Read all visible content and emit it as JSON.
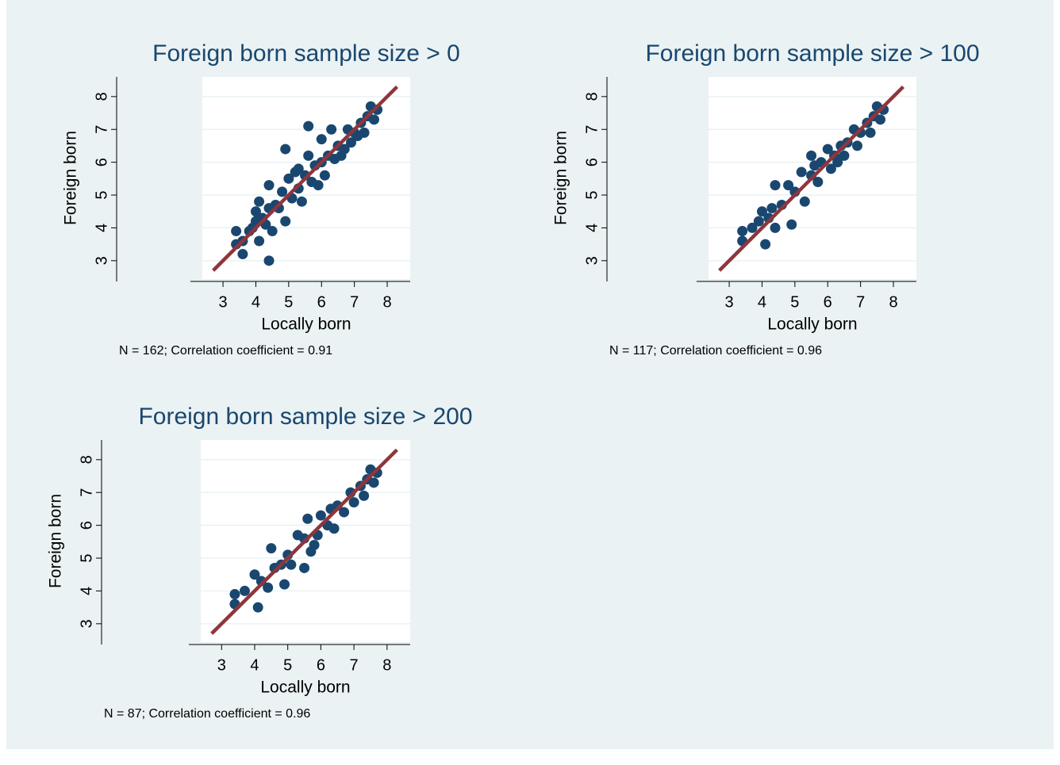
{
  "chart_data": [
    {
      "type": "scatter",
      "title": "Foreign born sample size > 0",
      "x_label": "Locally born",
      "y_label": "Foreign born",
      "note": "N = 162; Correlation coefficient =  0.91",
      "xlim": [
        2.37,
        8.7
      ],
      "ylim": [
        2.44,
        8.6
      ],
      "xticks": [
        3,
        4,
        5,
        6,
        7,
        8
      ],
      "yticks": [
        3,
        4,
        5,
        6,
        7,
        8
      ],
      "grid": true,
      "points": {
        "color": "#1a476f",
        "x": [
          3.4,
          3.4,
          3.6,
          3.6,
          3.8,
          3.9,
          4.0,
          4.0,
          4.1,
          4.1,
          4.2,
          4.3,
          4.4,
          4.4,
          4.4,
          4.5,
          4.7,
          4.8,
          4.9,
          4.9,
          5.0,
          5.1,
          5.2,
          5.3,
          5.4,
          5.5,
          5.6,
          5.6,
          5.7,
          5.8,
          5.9,
          6.0,
          6.0,
          6.1,
          6.2,
          6.3,
          6.4,
          6.5,
          6.6,
          6.8,
          6.9,
          7.0,
          7.1,
          7.2,
          7.3,
          7.4,
          7.5,
          7.6,
          7.7,
          4.6,
          5.3,
          6.7
        ],
        "y": [
          3.9,
          3.5,
          3.2,
          3.6,
          3.9,
          4.0,
          4.5,
          4.2,
          4.8,
          3.6,
          4.3,
          4.1,
          3.0,
          4.6,
          5.3,
          3.9,
          4.6,
          5.1,
          4.2,
          6.4,
          5.5,
          4.9,
          5.7,
          5.2,
          4.8,
          5.6,
          7.1,
          6.2,
          5.4,
          5.9,
          5.3,
          6.0,
          6.7,
          5.6,
          6.2,
          7.0,
          6.1,
          6.5,
          6.2,
          7.0,
          6.6,
          6.9,
          6.8,
          7.2,
          6.9,
          7.4,
          7.7,
          7.3,
          7.6,
          4.7,
          5.8,
          6.4
        ]
      },
      "fit": {
        "color": "#90353b",
        "x": [
          2.7,
          8.3
        ],
        "y": [
          2.7,
          8.3
        ]
      }
    },
    {
      "type": "scatter",
      "title": "Foreign born sample size > 100",
      "x_label": "Locally born",
      "y_label": "Foreign born",
      "note": "N = 117; Correlation coefficient =  0.96",
      "xlim": [
        2.37,
        8.7
      ],
      "ylim": [
        2.44,
        8.6
      ],
      "xticks": [
        3,
        4,
        5,
        6,
        7,
        8
      ],
      "yticks": [
        3,
        4,
        5,
        6,
        7,
        8
      ],
      "grid": true,
      "points": {
        "color": "#1a476f",
        "x": [
          3.4,
          3.4,
          3.7,
          3.9,
          4.0,
          4.1,
          4.2,
          4.4,
          4.4,
          4.6,
          4.8,
          4.9,
          5.0,
          5.2,
          5.3,
          5.5,
          5.5,
          5.7,
          5.8,
          6.0,
          6.1,
          6.2,
          6.4,
          6.5,
          6.6,
          6.8,
          6.9,
          7.0,
          7.2,
          7.3,
          7.4,
          7.5,
          7.6,
          7.7,
          4.3,
          5.6,
          6.3
        ],
        "y": [
          3.9,
          3.6,
          4.0,
          4.2,
          4.5,
          3.5,
          4.3,
          4.0,
          5.3,
          4.7,
          5.3,
          4.1,
          5.1,
          5.7,
          4.8,
          5.6,
          6.2,
          5.4,
          6.0,
          6.4,
          5.8,
          6.2,
          6.5,
          6.2,
          6.6,
          7.0,
          6.5,
          6.9,
          7.2,
          6.9,
          7.4,
          7.7,
          7.3,
          7.6,
          4.6,
          5.9,
          6.0
        ]
      },
      "fit": {
        "color": "#90353b",
        "x": [
          2.7,
          8.3
        ],
        "y": [
          2.7,
          8.3
        ]
      }
    },
    {
      "type": "scatter",
      "title": "Foreign born sample size > 200",
      "x_label": "Locally born",
      "y_label": "Foreign born",
      "note": "N = 87; Correlation coefficient =  0.96",
      "xlim": [
        2.37,
        8.7
      ],
      "ylim": [
        2.44,
        8.6
      ],
      "xticks": [
        3,
        4,
        5,
        6,
        7,
        8
      ],
      "yticks": [
        3,
        4,
        5,
        6,
        7,
        8
      ],
      "grid": true,
      "points": {
        "color": "#1a476f",
        "x": [
          3.4,
          3.4,
          3.7,
          4.0,
          4.1,
          4.2,
          4.4,
          4.5,
          4.6,
          4.9,
          5.0,
          5.1,
          5.3,
          5.5,
          5.5,
          5.6,
          5.7,
          5.9,
          6.0,
          6.2,
          6.3,
          6.4,
          6.5,
          6.7,
          6.9,
          7.0,
          7.2,
          7.3,
          7.4,
          7.5,
          7.6,
          7.7,
          4.8,
          5.8
        ],
        "y": [
          3.9,
          3.6,
          4.0,
          4.5,
          3.5,
          4.3,
          4.1,
          5.3,
          4.7,
          4.2,
          5.1,
          4.8,
          5.7,
          4.7,
          5.6,
          6.2,
          5.2,
          5.7,
          6.3,
          6.0,
          6.5,
          5.9,
          6.6,
          6.4,
          7.0,
          6.7,
          7.2,
          6.9,
          7.4,
          7.7,
          7.3,
          7.6,
          4.8,
          5.4
        ]
      },
      "fit": {
        "color": "#90353b",
        "x": [
          2.7,
          8.3
        ],
        "y": [
          2.7,
          8.3
        ]
      }
    }
  ]
}
